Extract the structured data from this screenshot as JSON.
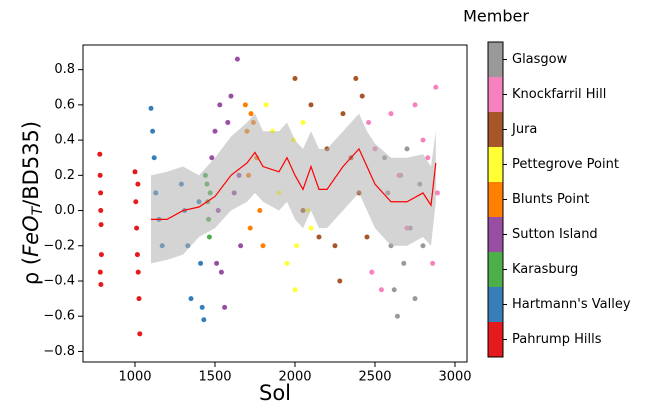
{
  "chart_data": {
    "type": "scatter",
    "xlabel": "Sol",
    "ylabel": {
      "prefix": "ρ (",
      "main": "FeO",
      "sub": "T",
      "suffix": "/BD535)"
    },
    "legend_title": "Member",
    "xlim": [
      675,
      3075
    ],
    "ylim": [
      -0.86,
      0.94
    ],
    "xticks": [
      1000,
      1500,
      2000,
      2500,
      3000
    ],
    "yticks": [
      {
        "value": -0.8,
        "label": "−0.8"
      },
      {
        "value": -0.6,
        "label": "−0.6"
      },
      {
        "value": -0.4,
        "label": "−0.4"
      },
      {
        "value": -0.2,
        "label": "−0.2"
      },
      {
        "value": 0,
        "label": "0.0"
      },
      {
        "value": 0.2,
        "label": "0.2"
      },
      {
        "value": 0.4,
        "label": "0.4"
      },
      {
        "value": 0.6,
        "label": "0.6"
      },
      {
        "value": 0.8,
        "label": "0.8"
      }
    ],
    "series": [
      {
        "name": "Glasgow",
        "color": "#999999",
        "x": [
          2560,
          2580,
          2600,
          2620,
          2640,
          2660,
          2680,
          2700,
          2720,
          2750,
          2780,
          2800
        ],
        "y": [
          0.3,
          0.1,
          -0.2,
          -0.45,
          -0.6,
          0.2,
          -0.3,
          0.35,
          -0.1,
          -0.5,
          0.15,
          -0.2
        ]
      },
      {
        "name": "Knockfarril Hill",
        "color": "#f781bf",
        "x": [
          2460,
          2500,
          2540,
          2600,
          2650,
          2700,
          2750,
          2800,
          2830,
          2860,
          2880,
          2890,
          2480
        ],
        "y": [
          0.5,
          0.35,
          -0.45,
          0.55,
          0.2,
          -0.1,
          0.6,
          0.4,
          0.3,
          -0.3,
          0.7,
          0.1,
          -0.35
        ]
      },
      {
        "name": "Jura",
        "color": "#a65628",
        "x": [
          2000,
          2050,
          2100,
          2150,
          2200,
          2250,
          2300,
          2350,
          2380,
          2400,
          2420,
          2450,
          2280
        ],
        "y": [
          0.75,
          0.0,
          0.6,
          -0.15,
          0.35,
          -0.2,
          0.55,
          0.3,
          0.75,
          0.1,
          0.65,
          -0.15,
          -0.4
        ]
      },
      {
        "name": "Pettegrove Point",
        "color": "#ffff33",
        "x": [
          1820,
          1860,
          1900,
          1950,
          1990,
          2000,
          2010,
          2050,
          2080,
          2100
        ],
        "y": [
          0.6,
          0.45,
          0.1,
          -0.3,
          0.4,
          -0.45,
          -0.2,
          0.5,
          0.0,
          -0.1
        ]
      },
      {
        "name": "Blunts Point",
        "color": "#ff7f00",
        "x": [
          1690,
          1700,
          1710,
          1720,
          1740,
          1760,
          1780,
          1800,
          1725
        ],
        "y": [
          0.6,
          0.45,
          0.2,
          -0.1,
          0.5,
          0.3,
          0.0,
          -0.2,
          0.55
        ]
      },
      {
        "name": "Sutton Island",
        "color": "#984ea3",
        "x": [
          1480,
          1500,
          1520,
          1540,
          1560,
          1580,
          1600,
          1620,
          1640,
          1650,
          1660,
          1510,
          1530
        ],
        "y": [
          0.3,
          0.45,
          0.0,
          -0.35,
          -0.55,
          0.5,
          0.65,
          0.1,
          0.86,
          0.2,
          -0.2,
          -0.3,
          0.6
        ]
      },
      {
        "name": "Karasburg",
        "color": "#4daf4a",
        "x": [
          1440,
          1450,
          1455,
          1460,
          1465,
          1470
        ],
        "y": [
          0.2,
          0.15,
          0.05,
          -0.05,
          -0.15,
          0.1
        ]
      },
      {
        "name": "Hartmann's Valley",
        "color": "#377eb8",
        "x": [
          1100,
          1110,
          1120,
          1130,
          1150,
          1170,
          1290,
          1310,
          1330,
          1350,
          1400,
          1410,
          1420,
          1430
        ],
        "y": [
          0.58,
          0.45,
          0.3,
          0.1,
          -0.05,
          -0.2,
          0.15,
          0.0,
          -0.2,
          -0.5,
          0.05,
          -0.3,
          -0.55,
          -0.62
        ]
      },
      {
        "name": "Pahrump Hills",
        "color": "#e41a1c",
        "x": [
          780,
          782,
          785,
          786,
          788,
          790,
          783,
          787,
          1000,
          1005,
          1010,
          1015,
          1020,
          1025,
          1030,
          1018
        ],
        "y": [
          0.32,
          0.2,
          0.1,
          0.0,
          -0.08,
          -0.25,
          -0.35,
          -0.42,
          0.22,
          0.05,
          -0.1,
          -0.25,
          -0.35,
          -0.5,
          -0.7,
          0.15
        ]
      }
    ],
    "trend": {
      "color": "#ff0000",
      "band_color": "#b0b0b0",
      "x": [
        1100,
        1200,
        1300,
        1400,
        1500,
        1600,
        1700,
        1750,
        1800,
        1900,
        1950,
        2000,
        2050,
        2100,
        2150,
        2200,
        2300,
        2400,
        2450,
        2500,
        2600,
        2700,
        2800,
        2850,
        2880
      ],
      "y": [
        -0.05,
        -0.05,
        0.0,
        0.02,
        0.08,
        0.2,
        0.27,
        0.33,
        0.25,
        0.22,
        0.3,
        0.2,
        0.12,
        0.25,
        0.12,
        0.12,
        0.25,
        0.35,
        0.25,
        0.15,
        0.05,
        0.05,
        0.1,
        0.03,
        0.27
      ],
      "lower": [
        -0.3,
        -0.28,
        -0.25,
        -0.15,
        -0.1,
        0.0,
        0.05,
        0.1,
        0.05,
        0.0,
        0.05,
        -0.05,
        -0.1,
        0.0,
        -0.1,
        -0.1,
        0.0,
        0.1,
        0.0,
        -0.1,
        -0.2,
        -0.2,
        -0.15,
        -0.2,
        0.05
      ],
      "upper": [
        0.2,
        0.22,
        0.25,
        0.2,
        0.3,
        0.42,
        0.5,
        0.55,
        0.45,
        0.45,
        0.5,
        0.4,
        0.35,
        0.45,
        0.35,
        0.35,
        0.45,
        0.55,
        0.45,
        0.38,
        0.3,
        0.3,
        0.32,
        0.25,
        0.45
      ]
    }
  }
}
